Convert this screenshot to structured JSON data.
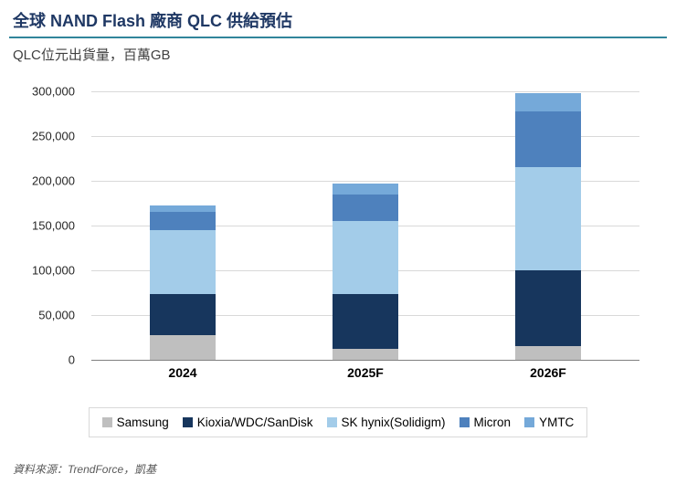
{
  "header": {
    "title": "全球 NAND Flash 廠商 QLC 供給預估",
    "subtitle": "QLC位元出貨量，百萬GB"
  },
  "chart_data": {
    "type": "bar",
    "stacked": true,
    "title": "全球 NAND Flash 廠商 QLC 供給預估",
    "ylabel": "QLC位元出貨量，百萬GB",
    "categories": [
      "2024",
      "2025F",
      "2026F"
    ],
    "series": [
      {
        "name": "Samsung",
        "color": "#BFBFBF",
        "values": [
          27000,
          12000,
          15000
        ]
      },
      {
        "name": "Kioxia/WDC/SanDisk",
        "color": "#17365D",
        "values": [
          46000,
          61000,
          85000
        ]
      },
      {
        "name": "SK hynix(Solidigm)",
        "color": "#A3CCE9",
        "values": [
          71000,
          82000,
          115000
        ]
      },
      {
        "name": "Micron",
        "color": "#4E81BD",
        "values": [
          21000,
          29000,
          62000
        ]
      },
      {
        "name": "YMTC",
        "color": "#75A9D9",
        "values": [
          7000,
          12000,
          20000
        ]
      }
    ],
    "ylim": [
      0,
      300000
    ],
    "ytick_step": 50000,
    "yticks": [
      "0",
      "50,000",
      "100,000",
      "150,000",
      "200,000",
      "250,000",
      "300,000"
    ],
    "grid": true,
    "legend_position": "bottom",
    "accent_rule_color": "#31859B",
    "title_color": "#1F3864"
  },
  "footer": {
    "source": "資料來源：TrendForce，凱基"
  }
}
